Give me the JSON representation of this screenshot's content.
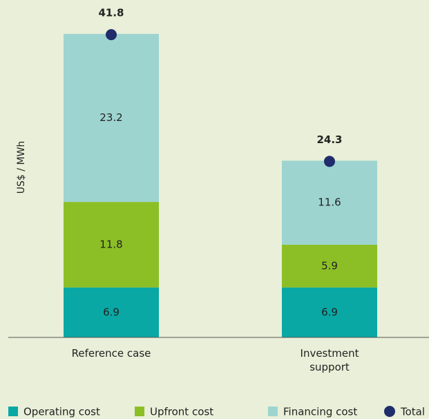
{
  "chart_data": {
    "type": "stacked-bar",
    "y_label": "US$ / MWh",
    "categories": [
      "Reference case",
      "Investment support"
    ],
    "series": [
      {
        "name": "Operating cost",
        "color": "#0aa8a4",
        "values": [
          6.9,
          6.9
        ]
      },
      {
        "name": "Upfront cost",
        "color": "#8cbf26",
        "values": [
          11.8,
          5.9
        ]
      },
      {
        "name": "Financing cost",
        "color": "#9dd4d0",
        "values": [
          23.2,
          11.6
        ]
      }
    ],
    "totals": {
      "name": "Total",
      "color": "#1f2d6b",
      "values": [
        41.8,
        24.3
      ]
    },
    "ylim": [
      0,
      42
    ],
    "legend": "bottom"
  }
}
